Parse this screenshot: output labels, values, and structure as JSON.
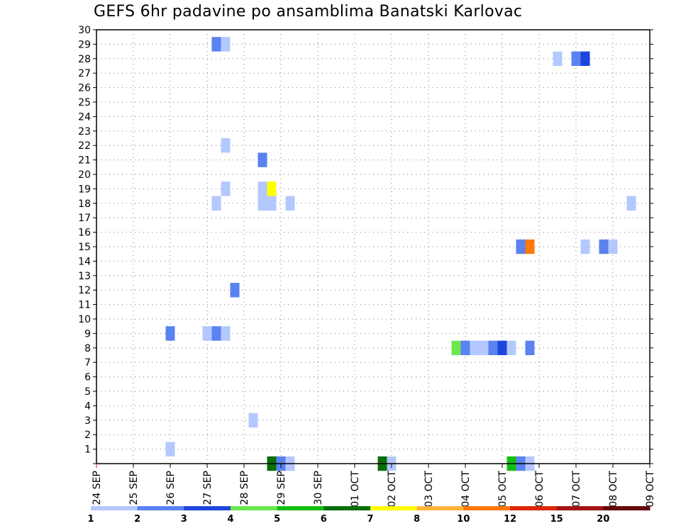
{
  "chart_data": {
    "type": "heatmap",
    "title": "GEFS 6hr padavine po ansamblima Banatski Karlovac",
    "xlabel": "",
    "ylabel": "",
    "x_range": [
      "24 SEP 00Z",
      "09 OCT 00Z"
    ],
    "x_step_hours": 6,
    "x_tick_labels": [
      "24 SEP",
      "25 SEP",
      "26 SEP",
      "27 SEP",
      "28 SEP",
      "29 SEP",
      "30 SEP",
      "01 OCT",
      "02 OCT",
      "03 OCT",
      "04 OCT",
      "05 OCT",
      "06 OCT",
      "07 OCT",
      "08 OCT",
      "09 OCT"
    ],
    "y_range": [
      0,
      30
    ],
    "y_tick_labels": [
      "1",
      "2",
      "3",
      "4",
      "5",
      "6",
      "7",
      "8",
      "9",
      "10",
      "11",
      "12",
      "13",
      "14",
      "15",
      "16",
      "17",
      "18",
      "19",
      "20",
      "21",
      "22",
      "23",
      "24",
      "25",
      "26",
      "27",
      "28",
      "29",
      "30"
    ],
    "grid": true,
    "colorbar": {
      "position": "bottom",
      "labels": [
        "1",
        "2",
        "3",
        "4",
        "5",
        "6",
        "7",
        "8",
        "10",
        "12",
        "15",
        "20"
      ],
      "colors": [
        "#b4c8ff",
        "#5a82f0",
        "#1e46dc",
        "#6ee650",
        "#14be14",
        "#0a6e0a",
        "#ffff00",
        "#ffb43c",
        "#ff780a",
        "#dc280a",
        "#a01414",
        "#640a0a"
      ]
    },
    "cells": [
      {
        "t": "26 SEP 00Z",
        "m": 1,
        "v": 1.5
      },
      {
        "t": "26 SEP 00Z",
        "m": 9,
        "v": 2.5
      },
      {
        "t": "27 SEP 00Z",
        "m": 9,
        "v": 1.5
      },
      {
        "t": "27 SEP 06Z",
        "m": 9,
        "v": 2.5
      },
      {
        "t": "27 SEP 12Z",
        "m": 9,
        "v": 1.5
      },
      {
        "t": "27 SEP 06Z",
        "m": 18,
        "v": 1.5
      },
      {
        "t": "27 SEP 06Z",
        "m": 29,
        "v": 2.5
      },
      {
        "t": "27 SEP 12Z",
        "m": 29,
        "v": 1.5
      },
      {
        "t": "27 SEP 12Z",
        "m": 19,
        "v": 1.5
      },
      {
        "t": "27 SEP 12Z",
        "m": 22,
        "v": 1.5
      },
      {
        "t": "27 SEP 18Z",
        "m": 12,
        "v": 2.5
      },
      {
        "t": "28 SEP 06Z",
        "m": 3,
        "v": 1.5
      },
      {
        "t": "28 SEP 12Z",
        "m": 18,
        "v": 1.5
      },
      {
        "t": "28 SEP 12Z",
        "m": 19,
        "v": 1.5
      },
      {
        "t": "28 SEP 12Z",
        "m": 21,
        "v": 2.5
      },
      {
        "t": "28 SEP 18Z",
        "m": 18,
        "v": 1.5
      },
      {
        "t": "28 SEP 18Z",
        "m": 19,
        "v": 7.5
      },
      {
        "t": "29 SEP 06Z",
        "m": 18,
        "v": 1.5
      },
      {
        "t": "28 SEP 18Z",
        "m": 0,
        "v": 6.5
      },
      {
        "t": "29 SEP 00Z",
        "m": 0,
        "v": 2.5
      },
      {
        "t": "29 SEP 06Z",
        "m": 0,
        "v": 1.5
      },
      {
        "t": "01 OCT 18Z",
        "m": 0,
        "v": 6.5
      },
      {
        "t": "02 OCT 00Z",
        "m": 0,
        "v": 1.5
      },
      {
        "t": "03 OCT 18Z",
        "m": 8,
        "v": 4.5
      },
      {
        "t": "04 OCT 00Z",
        "m": 8,
        "v": 2.5
      },
      {
        "t": "04 OCT 06Z",
        "m": 8,
        "v": 1.5
      },
      {
        "t": "04 OCT 12Z",
        "m": 8,
        "v": 1.5
      },
      {
        "t": "04 OCT 18Z",
        "m": 8,
        "v": 2.5
      },
      {
        "t": "05 OCT 00Z",
        "m": 8,
        "v": 3.5
      },
      {
        "t": "05 OCT 06Z",
        "m": 8,
        "v": 1.5
      },
      {
        "t": "05 OCT 18Z",
        "m": 8,
        "v": 2.5
      },
      {
        "t": "05 OCT 06Z",
        "m": 0,
        "v": 5.5
      },
      {
        "t": "05 OCT 12Z",
        "m": 0,
        "v": 2.5
      },
      {
        "t": "05 OCT 18Z",
        "m": 0,
        "v": 1.5
      },
      {
        "t": "05 OCT 12Z",
        "m": 15,
        "v": 2.5
      },
      {
        "t": "05 OCT 18Z",
        "m": 15,
        "v": 11
      },
      {
        "t": "06 OCT 12Z",
        "m": 28,
        "v": 1.5
      },
      {
        "t": "07 OCT 00Z",
        "m": 28,
        "v": 2.5
      },
      {
        "t": "07 OCT 06Z",
        "m": 28,
        "v": 3.5
      },
      {
        "t": "07 OCT 06Z",
        "m": 15,
        "v": 1.5
      },
      {
        "t": "07 OCT 18Z",
        "m": 15,
        "v": 2.5
      },
      {
        "t": "08 OCT 00Z",
        "m": 15,
        "v": 1.5
      },
      {
        "t": "08 OCT 12Z",
        "m": 18,
        "v": 1.5
      }
    ]
  }
}
